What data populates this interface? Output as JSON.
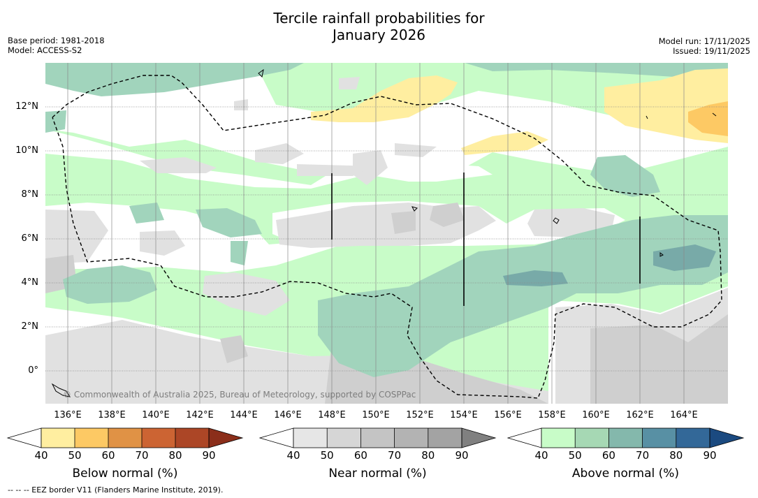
{
  "title_line1": "Tercile rainfall probabilities for",
  "title_line2": "January 2026",
  "base_period": "Base period: 1981-2018",
  "model": "Model: ACCESS-S2",
  "model_run": "Model run: 17/11/2025",
  "issued": "Issued: 19/11/2025",
  "copyright": "© Commonwealth of Australia 2025, Bureau of Meteorology, supported by COSPPac",
  "footnote": "--  --  -- EEZ border V11 (Flanders Marine Institute, 2019).",
  "lat_labels": [
    "12°N",
    "10°N",
    "8°N",
    "6°N",
    "4°N",
    "2°N",
    "0°"
  ],
  "lon_labels": [
    "136°E",
    "138°E",
    "140°E",
    "142°E",
    "144°E",
    "146°E",
    "148°E",
    "150°E",
    "152°E",
    "154°E",
    "156°E",
    "158°E",
    "160°E",
    "162°E",
    "164°E"
  ],
  "colorbars": [
    {
      "label": "Below normal (%)",
      "ticks": [
        "40",
        "50",
        "60",
        "70",
        "80",
        "90"
      ],
      "colors": [
        "#ffeea0",
        "#fdc964",
        "#e09245",
        "#cc6433",
        "#ac4626"
      ],
      "low": "#ffffff",
      "high": "#8b2e1a"
    },
    {
      "label": "Near normal (%)",
      "ticks": [
        "40",
        "50",
        "60",
        "70",
        "80",
        "90"
      ],
      "colors": [
        "#e6e6e6",
        "#d6d6d6",
        "#c4c4c4",
        "#b3b3b3",
        "#a3a3a3"
      ],
      "low": "#ffffff",
      "high": "#808080"
    },
    {
      "label": "Above normal (%)",
      "ticks": [
        "40",
        "50",
        "60",
        "70",
        "80",
        "90"
      ],
      "colors": [
        "#c8fcc8",
        "#a6d8b4",
        "#84b8ac",
        "#5890a4",
        "#336898"
      ],
      "low": "#ffffff",
      "high": "#1b4a80"
    }
  ],
  "colors": {
    "below50": "#ffeea0",
    "below60": "#fdc964",
    "near50": "#e1e1e1",
    "near60": "#d4d4d4",
    "above50": "#c8fcc8",
    "above60": "#a1d4bc",
    "above70": "#78aaa8",
    "eez": "#000000",
    "grid": "#888888"
  }
}
